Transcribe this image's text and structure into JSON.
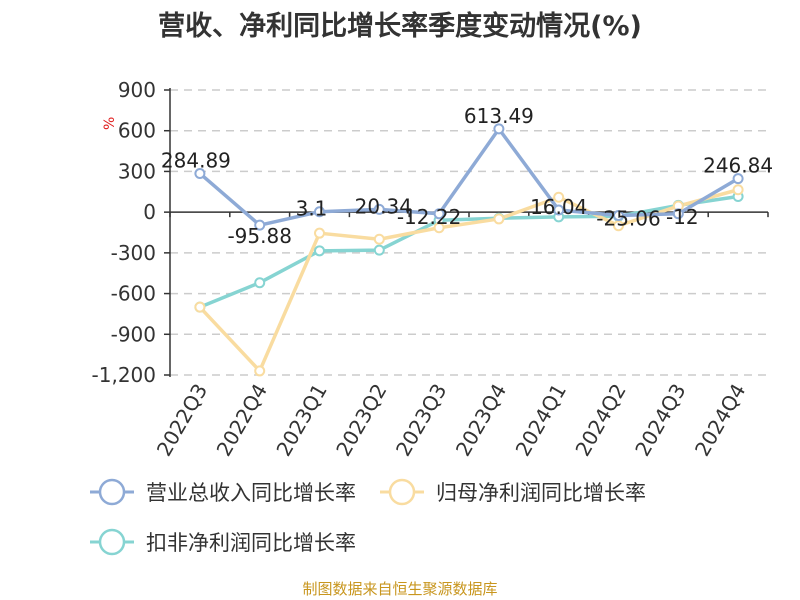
{
  "chart_data": {
    "type": "line",
    "title": "营收、净利同比增长率季度变动情况(%)",
    "unit": "%",
    "categories": [
      "2022Q3",
      "2022Q4",
      "2023Q1",
      "2023Q2",
      "2023Q3",
      "2023Q4",
      "2024Q1",
      "2024Q2",
      "2024Q3",
      "2024Q4"
    ],
    "ylim": [
      -1200,
      900
    ],
    "yticks": [
      900,
      600,
      300,
      0,
      -300,
      -600,
      -900,
      -1200
    ],
    "ytick_labels": [
      "900",
      "600",
      "300",
      "0",
      "-300",
      "-600",
      "-900",
      "-1,200"
    ],
    "grid": true,
    "legend_position": "bottom",
    "series": [
      {
        "name": "营业总收入同比增长率",
        "color": "#8eaad6",
        "values": [
          284.89,
          -95.88,
          3.1,
          20.34,
          -12.22,
          613.49,
          16.04,
          -25.06,
          -12,
          246.84
        ],
        "labels": [
          "284.89",
          "-95.88",
          "3.1",
          "20.34",
          "-12.22",
          "613.49",
          "16.04",
          "-25.06",
          "-12",
          "246.84"
        ]
      },
      {
        "name": "归母净利润同比增长率",
        "color": "#f9dca0",
        "values": [
          -700,
          -1170,
          -155,
          -200,
          -115,
          -50,
          110,
          -100,
          45,
          165
        ]
      },
      {
        "name": "扣非净利润同比增长率",
        "color": "#86d4d2",
        "values": [
          -700,
          -520,
          -285,
          -280,
          -60,
          -45,
          -35,
          -30,
          50,
          115
        ]
      }
    ]
  },
  "source": "制图数据来自恒生聚源数据库"
}
